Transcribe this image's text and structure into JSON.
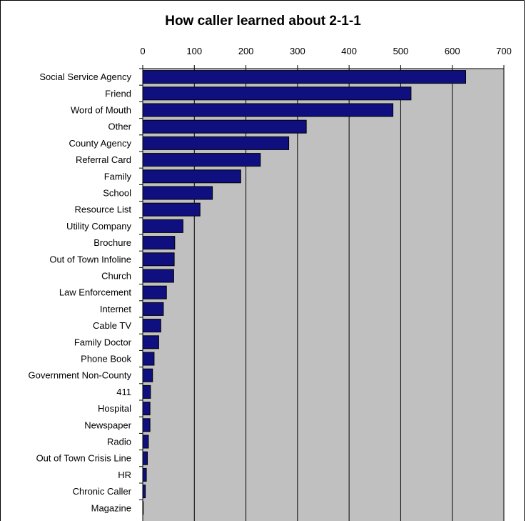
{
  "chart_data": {
    "type": "bar",
    "orientation": "horizontal",
    "title": "How caller learned about 2-1-1",
    "xlabel": "",
    "ylabel": "",
    "xlim": [
      0,
      700
    ],
    "x_ticks": [
      0,
      100,
      200,
      300,
      400,
      500,
      600,
      700
    ],
    "x_axis_position": "top",
    "grid": true,
    "legend": "none",
    "colors": {
      "bar": "#0f0f80",
      "plot_background": "#c0c0c0",
      "grid": "#000000"
    },
    "categories": [
      "Social Service Agency",
      "Friend",
      "Word of Mouth",
      "Other",
      "County Agency",
      "Referral Card",
      "Family",
      "School",
      "Resource List",
      "Utility Company",
      "Brochure",
      "Out of Town Infoline",
      "Church",
      "Law Enforcement",
      "Internet",
      "Cable TV",
      "Family Doctor",
      "Phone Book",
      "Government Non-County",
      "411",
      "Hospital",
      "Newspaper",
      "Radio",
      "Out of Town Crisis Line",
      "HR",
      "Chronic Caller",
      "Magazine"
    ],
    "values": [
      626,
      520,
      485,
      317,
      283,
      228,
      190,
      135,
      111,
      78,
      62,
      61,
      60,
      46,
      40,
      35,
      31,
      22,
      19,
      15,
      14,
      14,
      11,
      9,
      7,
      5,
      1
    ]
  }
}
